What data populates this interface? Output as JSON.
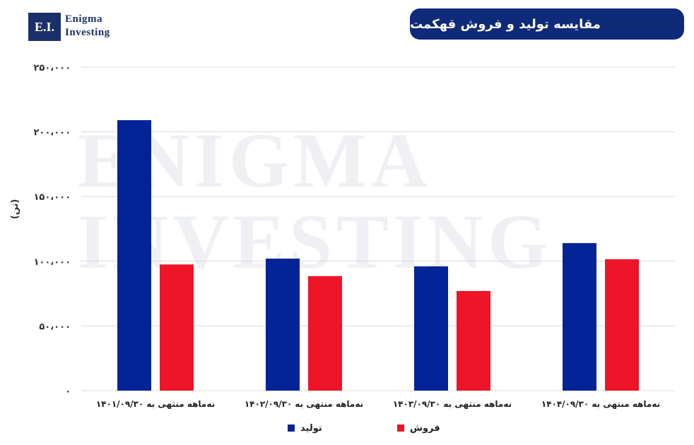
{
  "logo": {
    "box": "E.I.",
    "line1": "Enigma",
    "line2": "Investing"
  },
  "watermark": {
    "line1": "ENIGMA",
    "line2": "INVESTING"
  },
  "chart_data": {
    "type": "bar",
    "title": "مقایسه تولید و فروش قهکمت",
    "ylabel": "(تن)",
    "xlabel": "",
    "ylim": [
      0,
      250000
    ],
    "yticks": [
      "۰",
      "۵۰،۰۰۰",
      "۱۰۰،۰۰۰",
      "۱۵۰،۰۰۰",
      "۲۰۰،۰۰۰",
      "۲۵۰،۰۰۰"
    ],
    "ytick_values": [
      0,
      50000,
      100000,
      150000,
      200000,
      250000
    ],
    "grid": true,
    "legend_position": "bottom",
    "categories": [
      "۱۴۰۱/۰۹/۳۰ نه‌ماهه منتهی به",
      "۱۴۰۲/۰۹/۳۰ نه‌ماهه منتهی به",
      "۱۴۰۳/۰۹/۳۰ نه‌ماهه منتهی به",
      "۱۴۰۴/۰۹/۳۰ نه‌ماهه منتهی به"
    ],
    "series": [
      {
        "name": "تولید",
        "color": "#032496",
        "values": [
          209000,
          102000,
          96000,
          114000
        ]
      },
      {
        "name": "فروش",
        "color": "#ee1528",
        "values": [
          97500,
          88500,
          77000,
          101500
        ]
      }
    ]
  }
}
